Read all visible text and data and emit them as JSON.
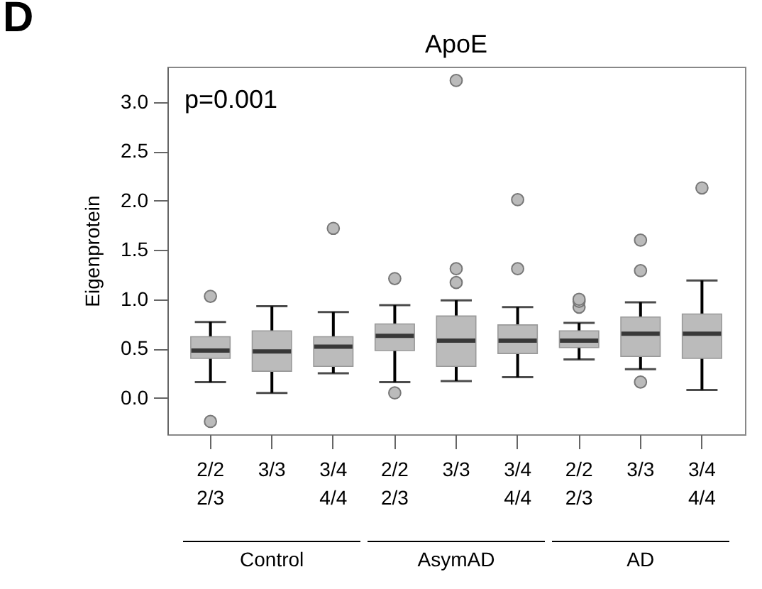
{
  "chart_data": {
    "type": "box",
    "title": "ApoE",
    "ylabel": "Eigenprotein",
    "categories": [
      "2/2\n2/3",
      "3/3",
      "3/4\n4/4",
      "2/2\n2/3",
      "3/3",
      "3/4\n4/4",
      "2/2\n2/3",
      "3/3",
      "3/4\n4/4"
    ],
    "color": "#bbbbbb",
    "boxes": [
      {
        "low": 0.16,
        "q1": 0.4,
        "median": 0.48,
        "q3": 0.62,
        "high": 0.77,
        "outliers": [
          1.03,
          -0.24
        ]
      },
      {
        "low": 0.05,
        "q1": 0.27,
        "median": 0.47,
        "q3": 0.68,
        "high": 0.93
      },
      {
        "low": 0.25,
        "q1": 0.32,
        "median": 0.52,
        "q3": 0.62,
        "high": 0.87,
        "outliers": [
          1.72
        ]
      },
      {
        "low": 0.16,
        "q1": 0.48,
        "median": 0.63,
        "q3": 0.75,
        "high": 0.94,
        "outliers": [
          1.21,
          0.05
        ]
      },
      {
        "low": 0.17,
        "q1": 0.32,
        "median": 0.58,
        "q3": 0.83,
        "high": 0.99,
        "outliers": [
          1.17,
          1.31,
          3.22
        ]
      },
      {
        "low": 0.21,
        "q1": 0.45,
        "median": 0.58,
        "q3": 0.74,
        "high": 0.92,
        "outliers": [
          1.31,
          2.01
        ]
      },
      {
        "low": 0.39,
        "q1": 0.51,
        "median": 0.58,
        "q3": 0.68,
        "high": 0.76,
        "outliers": [
          0.92,
          0.98,
          1.0
        ]
      },
      {
        "low": 0.29,
        "q1": 0.42,
        "median": 0.65,
        "q3": 0.82,
        "high": 0.97,
        "outliers": [
          0.16,
          1.29,
          1.6
        ]
      },
      {
        "low": 0.08,
        "q1": 0.4,
        "median": 0.65,
        "q3": 0.85,
        "high": 1.19,
        "outliers": [
          2.13
        ]
      }
    ],
    "ylim": [
      -0.37,
      3.36
    ],
    "yticks": [
      {
        "value": 0,
        "label": "0.0"
      },
      {
        "value": 0.5,
        "label": "0.5"
      },
      {
        "value": 1,
        "label": "1.0"
      },
      {
        "value": 1.5,
        "label": "1.5"
      },
      {
        "value": 2,
        "label": "2.0"
      },
      {
        "value": 2.5,
        "label": "2.5"
      },
      {
        "value": 3,
        "label": "3.0"
      }
    ],
    "annotations": [
      "D",
      "p=0.001",
      "Control",
      "AsymAD",
      "AD"
    ]
  }
}
